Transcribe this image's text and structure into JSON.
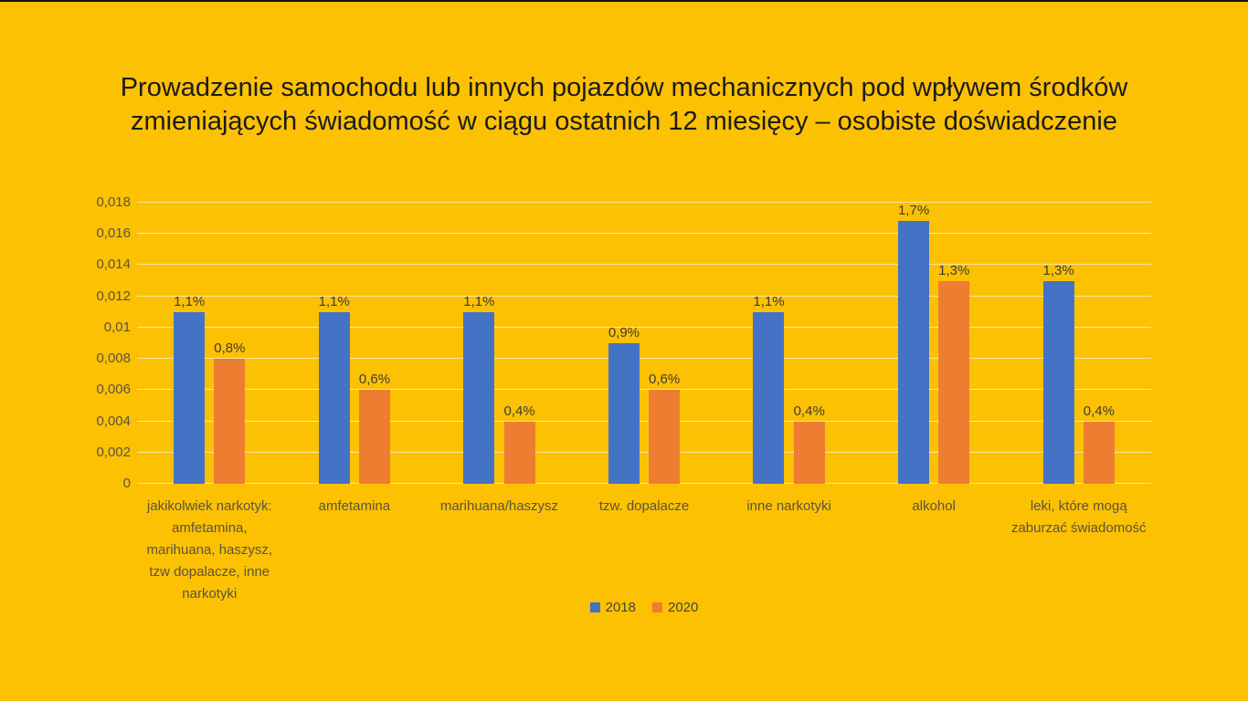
{
  "slide": {
    "background_color": "#FCC103",
    "top_border_color": "#161616"
  },
  "chart_data": {
    "type": "bar",
    "title": "Prowadzenie samochodu lub innych pojazdów mechanicznych pod wpływem środków zmieniających świadomość w ciągu ostatnich 12 miesięcy – osobiste doświadczenie",
    "categories": [
      "jakikolwiek narkotyk: amfetamina, marihuana, haszysz, tzw dopalacze, inne narkotyki",
      "amfetamina",
      "marihuana/haszysz",
      "tzw. dopalacze",
      "inne narkotyki",
      "alkohol",
      "leki, które mogą zaburzać świadomość"
    ],
    "series": [
      {
        "name": "2018",
        "color": "#4472C4",
        "values": [
          0.011,
          0.011,
          0.011,
          0.009,
          0.011,
          0.017,
          0.013
        ],
        "data_labels": [
          "1,1%",
          "1,1%",
          "1,1%",
          "0,9%",
          "1,1%",
          "1,7%",
          "1,3%"
        ]
      },
      {
        "name": "2020",
        "color": "#ED7D31",
        "values": [
          0.008,
          0.006,
          0.004,
          0.006,
          0.004,
          0.013,
          0.004
        ],
        "data_labels": [
          "0,8%",
          "0,6%",
          "0,4%",
          "0,6%",
          "0,4%",
          "1,3%",
          "0,4%"
        ]
      }
    ],
    "ylim": [
      0,
      0.018
    ],
    "yticks": [
      {
        "value": 0,
        "label": "0"
      },
      {
        "value": 0.002,
        "label": "0,002"
      },
      {
        "value": 0.004,
        "label": "0,004"
      },
      {
        "value": 0.006,
        "label": "0,006"
      },
      {
        "value": 0.008,
        "label": "0,008"
      },
      {
        "value": 0.01,
        "label": "0,01"
      },
      {
        "value": 0.012,
        "label": "0,012"
      },
      {
        "value": 0.014,
        "label": "0,014"
      },
      {
        "value": 0.016,
        "label": "0,016"
      },
      {
        "value": 0.018,
        "label": "0,018"
      }
    ],
    "grid": true,
    "gridline_color": "rgba(255,255,255,0.62)",
    "legend_position": "bottom",
    "text_colors": {
      "title": "#1b1b1b",
      "axis": "#5b5342",
      "data_label": "#3f3b33",
      "legend": "#49443a"
    }
  }
}
